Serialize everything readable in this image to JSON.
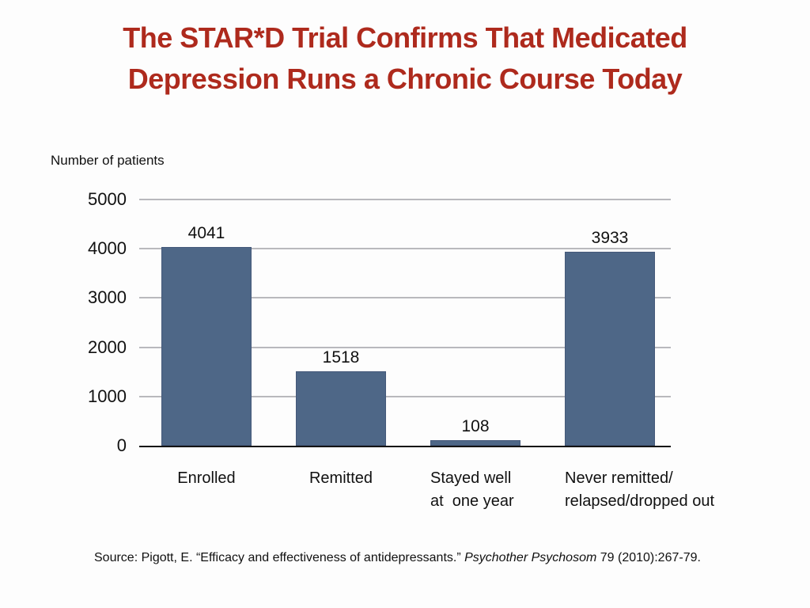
{
  "slide": {
    "title_line1": "The STAR*D Trial Confirms That Medicated",
    "title_line2": "Depression Runs a Chronic Course Today",
    "source": {
      "prefix": "Source: Pigott, E. “Efficacy and effectiveness of antidepressants.” ",
      "journal_italic": "Psychother Psychosom",
      "suffix": " 79 (2010):267-79."
    }
  },
  "chart_data": {
    "type": "bar",
    "title": "",
    "xlabel": "",
    "ylabel": "Number of patients",
    "categories": [
      "Enrolled",
      "Remitted",
      "Stayed well\nat  one year",
      "Never remitted/\nrelapsed/dropped out"
    ],
    "values": [
      4041,
      1518,
      108,
      3933
    ],
    "value_labels": [
      "4041",
      "1518",
      "108",
      "3933"
    ],
    "ylim": [
      0,
      5000
    ],
    "yticks": [
      0,
      1000,
      2000,
      3000,
      4000,
      5000
    ],
    "grid": true,
    "legend": "none",
    "bar_color": "#4e6787",
    "label_align": [
      "center",
      "center",
      "left",
      "left"
    ]
  },
  "colors": {
    "title_red": "#ae2a1d",
    "bar_fill": "#4e6787",
    "gridline": "#b9b9bd",
    "axis_line": "#141414",
    "text": "#111111",
    "background": "#fdfdfd"
  }
}
